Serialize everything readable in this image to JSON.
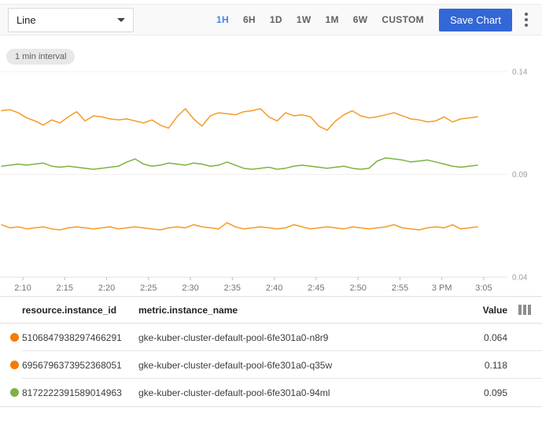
{
  "toolbar": {
    "chart_type_value": "Line",
    "time_ranges": [
      "1H",
      "6H",
      "1D",
      "1W",
      "1M",
      "6W",
      "CUSTOM"
    ],
    "selected_range": "1H",
    "save_label": "Save Chart"
  },
  "chart": {
    "interval_chip": "1 min interval"
  },
  "chart_data": {
    "type": "line",
    "title": "",
    "xlabel": "",
    "ylabel": "",
    "ylim": [
      0.04,
      0.14
    ],
    "y_ticks": [
      "0.14",
      "0.09",
      "0.04"
    ],
    "y_tick_values": [
      0.14,
      0.09,
      0.04
    ],
    "x_ticks": [
      "2:10",
      "2:15",
      "2:20",
      "2:25",
      "2:30",
      "2:35",
      "2:40",
      "2:45",
      "2:50",
      "2:55",
      "3 PM",
      "3:05"
    ],
    "grid": "horizontal-only",
    "legend_position": "table-below",
    "series": [
      {
        "name": "gke-kuber-cluster-default-pool-6fe301a0-q35w",
        "color": "#f69a26",
        "mean": 0.118,
        "values": [
          0.121,
          0.1215,
          0.12,
          0.1175,
          0.116,
          0.114,
          0.1165,
          0.115,
          0.118,
          0.1205,
          0.116,
          0.1185,
          0.118,
          0.117,
          0.1165,
          0.117,
          0.116,
          0.115,
          0.1165,
          0.114,
          0.1125,
          0.118,
          0.122,
          0.117,
          0.1135,
          0.1185,
          0.12,
          0.1195,
          0.119,
          0.1205,
          0.121,
          0.122,
          0.118,
          0.116,
          0.12,
          0.1185,
          0.119,
          0.118,
          0.1135,
          0.1115,
          0.116,
          0.119,
          0.121,
          0.1185,
          0.1175,
          0.118,
          0.119,
          0.12,
          0.1185,
          0.117,
          0.1165,
          0.1155,
          0.116,
          0.118,
          0.1155,
          0.117,
          0.1175,
          0.118
        ]
      },
      {
        "name": "gke-kuber-cluster-default-pool-6fe301a0-94ml",
        "color": "#7cb342",
        "mean": 0.095,
        "values": [
          0.094,
          0.0945,
          0.095,
          0.0945,
          0.095,
          0.0955,
          0.094,
          0.0935,
          0.094,
          0.0935,
          0.093,
          0.0925,
          0.093,
          0.0935,
          0.094,
          0.096,
          0.0975,
          0.095,
          0.094,
          0.0945,
          0.0955,
          0.095,
          0.0945,
          0.0955,
          0.095,
          0.094,
          0.0945,
          0.096,
          0.0945,
          0.093,
          0.0925,
          0.093,
          0.0935,
          0.0925,
          0.093,
          0.094,
          0.0945,
          0.094,
          0.0935,
          0.093,
          0.0935,
          0.094,
          0.093,
          0.0925,
          0.093,
          0.0965,
          0.098,
          0.0975,
          0.097,
          0.096,
          0.0965,
          0.097,
          0.096,
          0.095,
          0.094,
          0.0935,
          0.094,
          0.0945
        ]
      },
      {
        "name": "gke-kuber-cluster-default-pool-6fe301a0-n8r9",
        "color": "#f69a26",
        "mean": 0.064,
        "values": [
          0.0655,
          0.064,
          0.0645,
          0.0635,
          0.064,
          0.0645,
          0.0635,
          0.063,
          0.064,
          0.0645,
          0.064,
          0.0635,
          0.064,
          0.0645,
          0.0635,
          0.064,
          0.0645,
          0.064,
          0.0635,
          0.063,
          0.064,
          0.0645,
          0.064,
          0.0655,
          0.0645,
          0.064,
          0.0635,
          0.0665,
          0.0645,
          0.0635,
          0.064,
          0.0645,
          0.064,
          0.0635,
          0.064,
          0.0655,
          0.0645,
          0.0635,
          0.064,
          0.0645,
          0.064,
          0.0635,
          0.0645,
          0.064,
          0.0635,
          0.064,
          0.0645,
          0.0655,
          0.064,
          0.0635,
          0.063,
          0.064,
          0.0645,
          0.064,
          0.0655,
          0.0635,
          0.064,
          0.0645
        ]
      }
    ]
  },
  "table": {
    "columns": {
      "instance_id": "resource.instance_id",
      "instance_name": "metric.instance_name",
      "value": "Value"
    },
    "rows": [
      {
        "color": "#f57c00",
        "instance_id": "5106847938297466291",
        "instance_name": "gke-kuber-cluster-default-pool-6fe301a0-n8r9",
        "value": "0.064"
      },
      {
        "color": "#f57c00",
        "instance_id": "6956796373952368051",
        "instance_name": "gke-kuber-cluster-default-pool-6fe301a0-q35w",
        "value": "0.118"
      },
      {
        "color": "#7cb342",
        "instance_id": "8172222391589014963",
        "instance_name": "gke-kuber-cluster-default-pool-6fe301a0-94ml",
        "value": "0.095"
      }
    ]
  },
  "colors": {
    "accent_blue": "#4285f4",
    "save_button": "#3367d6",
    "orange_series": "#f69a26",
    "green_series": "#7cb342",
    "grid_line": "#f0f0f0",
    "axis_line": "#e0e0e0",
    "tick_label": "#757575"
  }
}
